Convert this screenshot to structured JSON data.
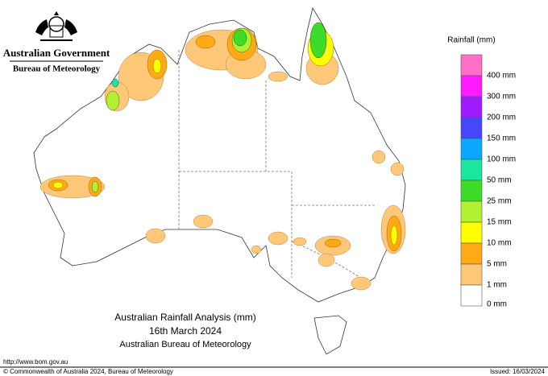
{
  "header": {
    "government": "Australian Government",
    "agency": "Bureau of Meteorology"
  },
  "legend": {
    "title": "Rainfall (mm)",
    "items": [
      {
        "label": "400 mm",
        "color": "#ff6ec7"
      },
      {
        "label": "300 mm",
        "color": "#ff1aff"
      },
      {
        "label": "200 mm",
        "color": "#a01aff"
      },
      {
        "label": "150 mm",
        "color": "#4646ff"
      },
      {
        "label": "100 mm",
        "color": "#0aa8ff"
      },
      {
        "label": "50 mm",
        "color": "#1ae6a0"
      },
      {
        "label": "25 mm",
        "color": "#3cdc28"
      },
      {
        "label": "15 mm",
        "color": "#b4f032"
      },
      {
        "label": "10 mm",
        "color": "#ffff00"
      },
      {
        "label": "5 mm",
        "color": "#ffaa14"
      },
      {
        "label": "1 mm",
        "color": "#ffc878"
      },
      {
        "label": "0 mm",
        "color": "#ffffff"
      }
    ]
  },
  "map": {
    "title": "Australian Rainfall Analysis (mm)",
    "date": "16th March 2024",
    "source": "Australian Bureau of Meteorology"
  },
  "footer": {
    "url": "http://www.bom.gov.au",
    "copyright": "© Commonwealth of Australia 2024, Bureau of Meteorology",
    "issued": "Issued: 16/03/2024"
  }
}
